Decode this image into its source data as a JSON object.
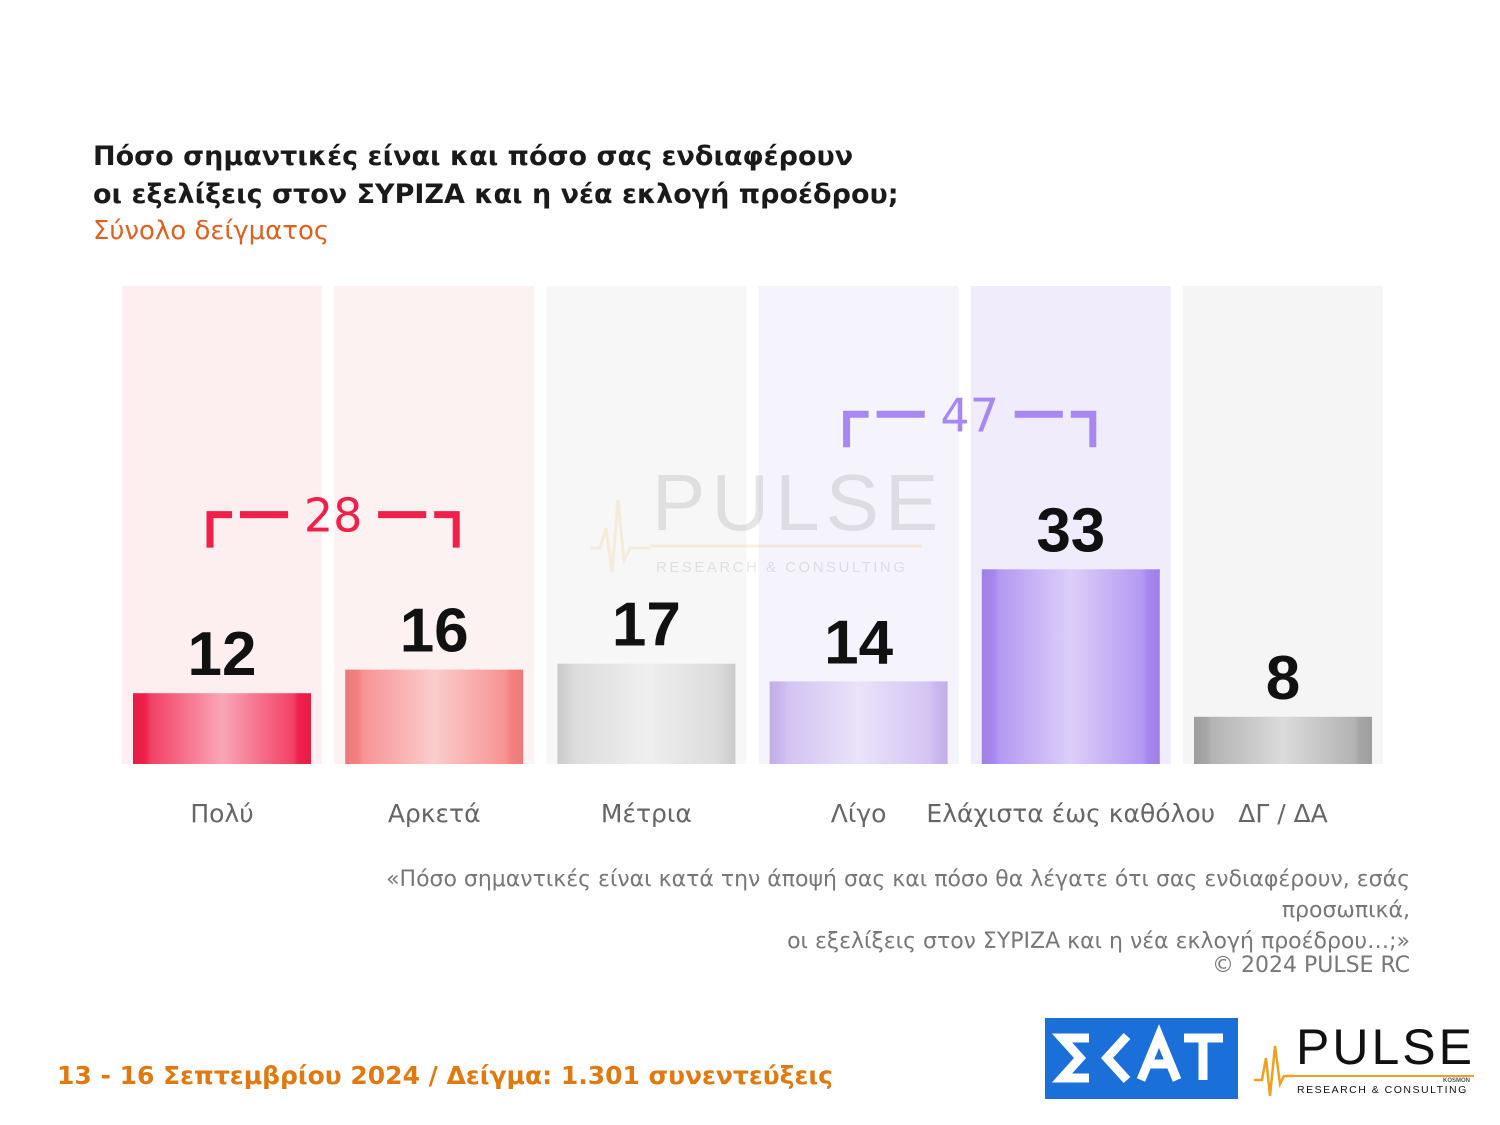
{
  "title_line1": "Πόσο σημαντικές είναι και πόσο σας ενδιαφέρουν",
  "title_line2": "οι εξελίξεις στον ΣΥΡΙΖΑ και η νέα εκλογή προέδρου;",
  "subtitle": "Σύνολο δείγματος",
  "question_line1": "«Πόσο σημαντικές είναι κατά την άποψή σας και πόσο θα λέγατε ότι σας ενδιαφέρουν, εσάς προσωπικά,",
  "question_line2": "οι εξελίξεις στον ΣΥΡΙΖΑ και η νέα εκλογή προέδρου…;»",
  "copyright": "© 2024 PULSE RC",
  "footer": "13 - 16 Σεπτεμβρίου 2024  /  Δείγμα:  1.301 συνεντεύξεις",
  "logos": {
    "skai": "ΣΚΑΪ",
    "pulse": "PULSE",
    "pulse_small": "KOSMON",
    "pulse_tagline": "RESEARCH & CONSULTING"
  },
  "watermark": {
    "text": "PULSE",
    "tagline": "RESEARCH & CONSULTING"
  },
  "chart_data": {
    "type": "bar",
    "categories": [
      "Πολύ",
      "Αρκετά",
      "Μέτρια",
      "Λίγο",
      "Ελάχιστα έως καθόλου",
      "ΔΓ / ΔΑ"
    ],
    "values": [
      12,
      16,
      17,
      14,
      33,
      8
    ],
    "colors": [
      "#f0204a",
      "#f58080",
      "#d6d6d6",
      "#cbb8f0",
      "#a787f0",
      "#a6a6a6"
    ],
    "background_colors": [
      "#fdeef0",
      "#fdf2f2",
      "#f7f7f7",
      "#f5f3fb",
      "#f1ecfb",
      "#f5f5f5"
    ],
    "brackets": [
      {
        "label": "28",
        "from": 0,
        "to": 1,
        "color": "#f0204a"
      },
      {
        "label": "47",
        "from": 3,
        "to": 4,
        "color": "#a787f0"
      }
    ]
  }
}
